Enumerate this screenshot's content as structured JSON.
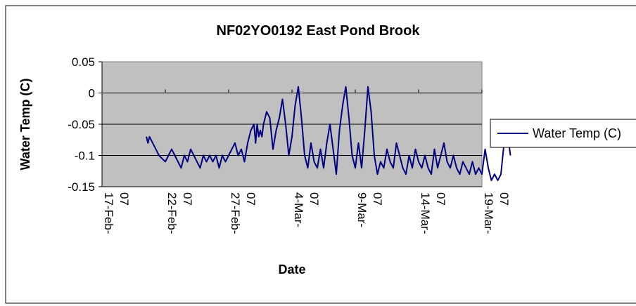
{
  "chart_data": {
    "type": "line",
    "title": "NF02YO0192 East Pond Brook",
    "xlabel": "Date",
    "ylabel": "Water Temp (C)",
    "xlim": [
      "2007-02-17",
      "2007-03-19"
    ],
    "ylim": [
      -0.15,
      0.05
    ],
    "x_ticks": [
      "2007-02-17",
      "2007-02-22",
      "2007-02-27",
      "2007-03-04",
      "2007-03-09",
      "2007-03-14",
      "2007-03-19"
    ],
    "x_tick_labels": [
      "17-Feb-07",
      "22-Feb-07",
      "27-Feb-07",
      "4-Mar-07",
      "9-Mar-07",
      "14-Mar-07",
      "19-Mar-07"
    ],
    "y_ticks": [
      0.05,
      0,
      -0.05,
      -0.1,
      -0.15
    ],
    "y_tick_labels": [
      "0.05",
      "0",
      "-0.05",
      "-0.1",
      "-0.15"
    ],
    "grid": "horizontal",
    "legend_position": "right",
    "plot_background": "#c0c0c0",
    "series": [
      {
        "name": "Water Temp (C)",
        "color": "#000080",
        "points": [
          [
            "2007-02-20 12:00",
            -0.07
          ],
          [
            "2007-02-20 15:00",
            -0.08
          ],
          [
            "2007-02-20 18:00",
            -0.07
          ],
          [
            "2007-02-21 00:00",
            -0.08
          ],
          [
            "2007-02-21 06:00",
            -0.09
          ],
          [
            "2007-02-21 12:00",
            -0.1
          ],
          [
            "2007-02-22 00:00",
            -0.11
          ],
          [
            "2007-02-22 06:00",
            -0.1
          ],
          [
            "2007-02-22 12:00",
            -0.09
          ],
          [
            "2007-02-22 18:00",
            -0.1
          ],
          [
            "2007-02-23 00:00",
            -0.11
          ],
          [
            "2007-02-23 06:00",
            -0.12
          ],
          [
            "2007-02-23 12:00",
            -0.1
          ],
          [
            "2007-02-23 18:00",
            -0.11
          ],
          [
            "2007-02-24 00:00",
            -0.09
          ],
          [
            "2007-02-24 06:00",
            -0.1
          ],
          [
            "2007-02-24 12:00",
            -0.11
          ],
          [
            "2007-02-24 18:00",
            -0.12
          ],
          [
            "2007-02-25 00:00",
            -0.1
          ],
          [
            "2007-02-25 06:00",
            -0.11
          ],
          [
            "2007-02-25 12:00",
            -0.1
          ],
          [
            "2007-02-25 18:00",
            -0.11
          ],
          [
            "2007-02-26 00:00",
            -0.1
          ],
          [
            "2007-02-26 06:00",
            -0.12
          ],
          [
            "2007-02-26 12:00",
            -0.1
          ],
          [
            "2007-02-26 18:00",
            -0.11
          ],
          [
            "2007-02-27 00:00",
            -0.1
          ],
          [
            "2007-02-27 06:00",
            -0.09
          ],
          [
            "2007-02-27 12:00",
            -0.08
          ],
          [
            "2007-02-27 18:00",
            -0.1
          ],
          [
            "2007-02-28 00:00",
            -0.09
          ],
          [
            "2007-02-28 06:00",
            -0.11
          ],
          [
            "2007-02-28 12:00",
            -0.08
          ],
          [
            "2007-02-28 18:00",
            -0.06
          ],
          [
            "2007-03-01 00:00",
            -0.05
          ],
          [
            "2007-03-01 03:00",
            -0.08
          ],
          [
            "2007-03-01 06:00",
            -0.05
          ],
          [
            "2007-03-01 09:00",
            -0.07
          ],
          [
            "2007-03-01 12:00",
            -0.06
          ],
          [
            "2007-03-01 15:00",
            -0.07
          ],
          [
            "2007-03-01 18:00",
            -0.05
          ],
          [
            "2007-03-02 00:00",
            -0.03
          ],
          [
            "2007-03-02 06:00",
            -0.04
          ],
          [
            "2007-03-02 12:00",
            -0.09
          ],
          [
            "2007-03-02 18:00",
            -0.06
          ],
          [
            "2007-03-03 00:00",
            -0.04
          ],
          [
            "2007-03-03 06:00",
            -0.01
          ],
          [
            "2007-03-03 12:00",
            -0.05
          ],
          [
            "2007-03-03 18:00",
            -0.1
          ],
          [
            "2007-03-04 00:00",
            -0.07
          ],
          [
            "2007-03-04 06:00",
            -0.02
          ],
          [
            "2007-03-04 12:00",
            0.01
          ],
          [
            "2007-03-04 18:00",
            -0.04
          ],
          [
            "2007-03-05 00:00",
            -0.1
          ],
          [
            "2007-03-05 06:00",
            -0.12
          ],
          [
            "2007-03-05 12:00",
            -0.08
          ],
          [
            "2007-03-05 18:00",
            -0.11
          ],
          [
            "2007-03-06 00:00",
            -0.12
          ],
          [
            "2007-03-06 06:00",
            -0.09
          ],
          [
            "2007-03-06 12:00",
            -0.12
          ],
          [
            "2007-03-06 18:00",
            -0.08
          ],
          [
            "2007-03-07 00:00",
            -0.05
          ],
          [
            "2007-03-07 06:00",
            -0.09
          ],
          [
            "2007-03-07 12:00",
            -0.13
          ],
          [
            "2007-03-07 18:00",
            -0.06
          ],
          [
            "2007-03-08 00:00",
            -0.02
          ],
          [
            "2007-03-08 06:00",
            0.01
          ],
          [
            "2007-03-08 12:00",
            -0.04
          ],
          [
            "2007-03-08 18:00",
            -0.1
          ],
          [
            "2007-03-09 00:00",
            -0.12
          ],
          [
            "2007-03-09 06:00",
            -0.08
          ],
          [
            "2007-03-09 12:00",
            -0.12
          ],
          [
            "2007-03-09 18:00",
            -0.06
          ],
          [
            "2007-03-10 00:00",
            0.01
          ],
          [
            "2007-03-10 06:00",
            -0.03
          ],
          [
            "2007-03-10 12:00",
            -0.1
          ],
          [
            "2007-03-10 18:00",
            -0.13
          ],
          [
            "2007-03-11 00:00",
            -0.11
          ],
          [
            "2007-03-11 06:00",
            -0.12
          ],
          [
            "2007-03-11 12:00",
            -0.09
          ],
          [
            "2007-03-11 18:00",
            -0.11
          ],
          [
            "2007-03-12 00:00",
            -0.12
          ],
          [
            "2007-03-12 06:00",
            -0.08
          ],
          [
            "2007-03-12 12:00",
            -0.1
          ],
          [
            "2007-03-12 18:00",
            -0.12
          ],
          [
            "2007-03-13 00:00",
            -0.13
          ],
          [
            "2007-03-13 06:00",
            -0.1
          ],
          [
            "2007-03-13 12:00",
            -0.12
          ],
          [
            "2007-03-13 18:00",
            -0.09
          ],
          [
            "2007-03-14 00:00",
            -0.11
          ],
          [
            "2007-03-14 06:00",
            -0.12
          ],
          [
            "2007-03-14 12:00",
            -0.1
          ],
          [
            "2007-03-14 18:00",
            -0.12
          ],
          [
            "2007-03-15 00:00",
            -0.13
          ],
          [
            "2007-03-15 06:00",
            -0.09
          ],
          [
            "2007-03-15 12:00",
            -0.12
          ],
          [
            "2007-03-15 18:00",
            -0.1
          ],
          [
            "2007-03-16 00:00",
            -0.08
          ],
          [
            "2007-03-16 06:00",
            -0.11
          ],
          [
            "2007-03-16 12:00",
            -0.12
          ],
          [
            "2007-03-16 18:00",
            -0.1
          ],
          [
            "2007-03-17 00:00",
            -0.12
          ],
          [
            "2007-03-17 06:00",
            -0.13
          ],
          [
            "2007-03-17 12:00",
            -0.11
          ],
          [
            "2007-03-17 18:00",
            -0.12
          ],
          [
            "2007-03-18 00:00",
            -0.13
          ],
          [
            "2007-03-18 06:00",
            -0.11
          ],
          [
            "2007-03-18 12:00",
            -0.13
          ],
          [
            "2007-03-18 18:00",
            -0.12
          ],
          [
            "2007-03-19 00:00",
            -0.13
          ],
          [
            "2007-03-19 06:00",
            -0.09
          ],
          [
            "2007-03-19 12:00",
            -0.12
          ],
          [
            "2007-03-19 18:00",
            -0.14
          ],
          [
            "2007-03-20 00:00",
            -0.13
          ],
          [
            "2007-03-20 06:00",
            -0.14
          ],
          [
            "2007-03-20 12:00",
            -0.13
          ],
          [
            "2007-03-20 18:00",
            -0.08
          ],
          [
            "2007-03-21 00:00",
            -0.06
          ],
          [
            "2007-03-21 06:00",
            -0.1
          ]
        ]
      }
    ]
  }
}
